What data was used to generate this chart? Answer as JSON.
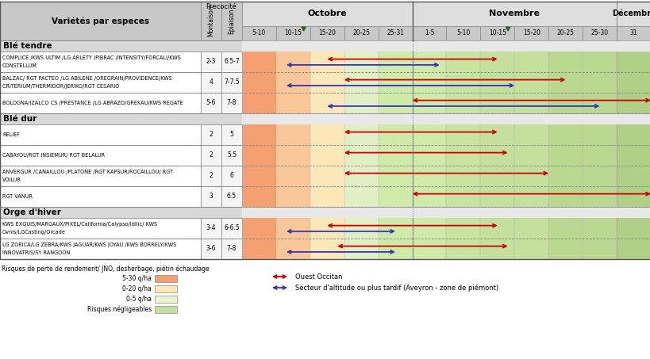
{
  "varieties_header": "Variétés par especes",
  "precocite_header": "Precocité",
  "montaison_label": "Montaison",
  "epiaison_label": "Epiaison",
  "months": [
    "Octobre",
    "Novembre",
    "Décembre"
  ],
  "periods": [
    "5-10",
    "10-15",
    "15-20",
    "20-25",
    "25-31",
    "1-5",
    "5-10",
    "10-15",
    "15-20",
    "20-25",
    "25-30",
    "31"
  ],
  "sections": [
    "Blé tendre",
    "Blé dur",
    "Orge d'hiver"
  ],
  "rows": [
    {
      "variety_line1": "COMPLICE /KWS ULTIM /LG ARLETY /PIBRAC /INTENSITY/FORCALI/KWS",
      "variety_line2": "CONSTELLUM",
      "montaison": "2-3",
      "epiaison": "6.5-7",
      "section": "Blé tendre",
      "red": [
        2.5,
        7.5
      ],
      "blue": [
        1.3,
        5.8
      ]
    },
    {
      "variety_line1": "BALZAC/ RGT PACTEO /LG ABILENE /OREGRAIN/PROVIDENCE/KWS",
      "variety_line2": "CRITERIUM/THERMIDOR/JERIKO/RGT CESARIO",
      "montaison": "4",
      "epiaison": "7-7.5",
      "section": "Blé tendre",
      "red": [
        3.0,
        9.5
      ],
      "blue": [
        1.3,
        8.0
      ]
    },
    {
      "variety_line1": "BOLOGNA/IZALCO CS /PRESTANCE /LG ABRAZO/GREKAU/KWS REGATE",
      "variety_line2": "",
      "montaison": "5-6",
      "epiaison": "7-8",
      "section": "Blé tendre",
      "red": [
        5.0,
        12.0
      ],
      "blue": [
        2.5,
        10.5
      ]
    },
    {
      "variety_line1": "RELIEF",
      "variety_line2": "",
      "montaison": "2",
      "epiaison": "5",
      "section": "Blé dur",
      "red": [
        3.0,
        7.5
      ],
      "blue": null
    },
    {
      "variety_line1": "CABAYOU/RGT INSIEMUR/ RGT BELALUR",
      "variety_line2": "",
      "montaison": "2",
      "epiaison": "5.5",
      "section": "Blé dur",
      "red": [
        3.0,
        7.8
      ],
      "blue": null
    },
    {
      "variety_line1": "ANVERGUR /CANAILLOU /PLATONE /RGT KAPSUR/ROCAILLOU/ RGT",
      "variety_line2": "VOILUR",
      "montaison": "2",
      "epiaison": "6",
      "section": "Blé dur",
      "red": [
        3.0,
        9.0
      ],
      "blue": null
    },
    {
      "variety_line1": "RGT VANUR",
      "variety_line2": "",
      "montaison": "3",
      "epiaison": "6.5",
      "section": "Blé dur",
      "red": [
        5.0,
        12.0
      ],
      "blue": null
    },
    {
      "variety_line1": "KWS EXQUIS/MARGAUX/PIXEL/California/Calypso/Idilic/ KWS",
      "variety_line2": "Ovnis/LGCasting/Orcade",
      "montaison": "3-4",
      "epiaison": "6-6.5",
      "section": "Orge d'hiver",
      "red": [
        2.5,
        7.5
      ],
      "blue": [
        1.3,
        4.5
      ]
    },
    {
      "variety_line1": "LG ZORICA/LG ZEBRA/KWS JAGUAR/KWS JOYAU /KWS BORRELY/KWS",
      "variety_line2": "INNOVATRIS/SY RANGOON",
      "montaison": "3-6",
      "epiaison": "7-8",
      "section": "Orge d'hiver",
      "red": [
        2.8,
        7.8
      ],
      "blue": [
        1.3,
        4.5
      ]
    }
  ],
  "zone_colors": [
    "#F5A070",
    "#FAC898",
    "#FAE8B8",
    "#E0F0C4",
    "#D0EAAA",
    "#D0EAAA",
    "#C8E4A0",
    "#C4E09C",
    "#C4E09C",
    "#BAD890",
    "#BAD890",
    "#B0D088"
  ],
  "color_red": "#CC0000",
  "color_blue": "#3333BB",
  "c_gray": "#C8C8C8",
  "c_lgray": "#DEDEDE",
  "c_section": "#D8D8D8",
  "c_white": "#FFFFFF",
  "legend_items": [
    [
      "5-30 q/ha",
      "#F5A070"
    ],
    [
      "0-20 q/ha",
      "#FAE8B8"
    ],
    [
      "0-5 q/ha",
      "#E8F5D0"
    ],
    [
      "Risques négligeables",
      "#C0E0A0"
    ]
  ],
  "legend_risk_text": "Risques de perte de rendement/ JNO, desherbage, piétin échaudage",
  "legend_red_text": "Ouest Occitan",
  "legend_blue_text": "Secteur d'altitude ou plus tardif (Aveyron - zone de piémont)"
}
